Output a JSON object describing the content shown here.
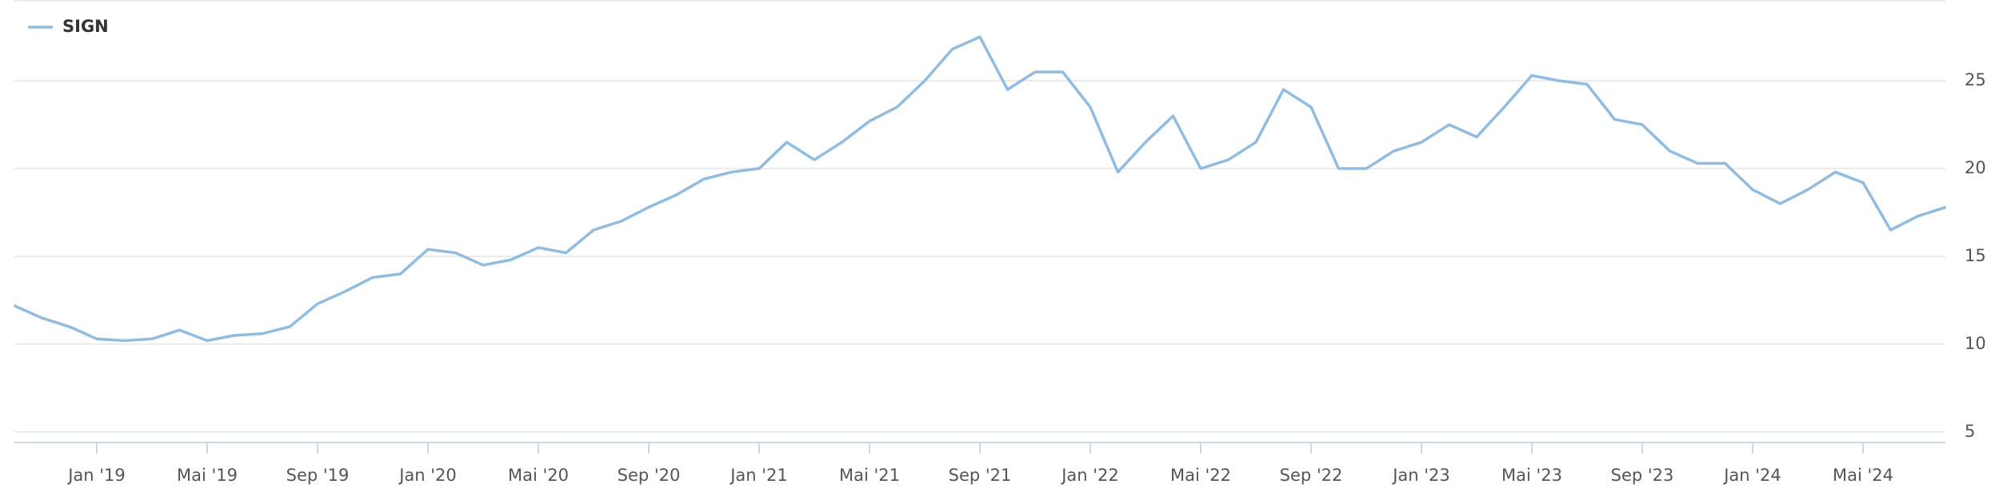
{
  "chart_data": {
    "type": "line",
    "categories": [
      null,
      null,
      null,
      "Jan '19",
      null,
      null,
      null,
      "Mai '19",
      null,
      null,
      null,
      "Sep '19",
      null,
      null,
      null,
      "Jan '20",
      null,
      null,
      null,
      "Mai '20",
      null,
      null,
      null,
      "Sep '20",
      null,
      null,
      null,
      "Jan '21",
      null,
      null,
      null,
      "Mai '21",
      null,
      null,
      null,
      "Sep '21",
      null,
      null,
      null,
      "Jan '22",
      null,
      null,
      null,
      "Mai '22",
      null,
      null,
      null,
      "Sep '22",
      null,
      null,
      null,
      "Jan '23",
      null,
      null,
      null,
      "Mai '23",
      null,
      null,
      null,
      "Sep '23",
      null,
      null,
      null,
      "Jan '24",
      null,
      null,
      null,
      "Mai '24",
      null,
      null,
      null
    ],
    "series": [
      {
        "name": "SIGN",
        "color": "#8fbce0",
        "values": [
          12.2,
          11.5,
          11.0,
          10.3,
          10.2,
          10.3,
          10.8,
          10.2,
          10.5,
          10.6,
          11.0,
          12.3,
          13.0,
          13.8,
          14.0,
          15.4,
          15.2,
          14.5,
          14.8,
          15.5,
          15.2,
          16.5,
          17.0,
          17.8,
          18.5,
          19.4,
          19.8,
          20.0,
          21.5,
          20.5,
          21.5,
          22.7,
          23.5,
          25.0,
          26.8,
          27.5,
          24.5,
          25.5,
          25.5,
          23.5,
          19.8,
          21.5,
          23.0,
          20.0,
          20.5,
          21.5,
          24.5,
          23.5,
          20.0,
          20.0,
          21.0,
          21.5,
          22.5,
          21.8,
          23.5,
          25.3,
          25.0,
          24.8,
          22.8,
          22.5,
          21.0,
          20.3,
          20.3,
          18.8,
          18.0,
          18.8,
          19.8,
          19.2,
          16.5,
          17.3,
          17.8
        ]
      }
    ],
    "ylim": [
      4.4,
      29.6
    ],
    "yticks": [
      5,
      10,
      15,
      20,
      25
    ],
    "grid": true
  }
}
